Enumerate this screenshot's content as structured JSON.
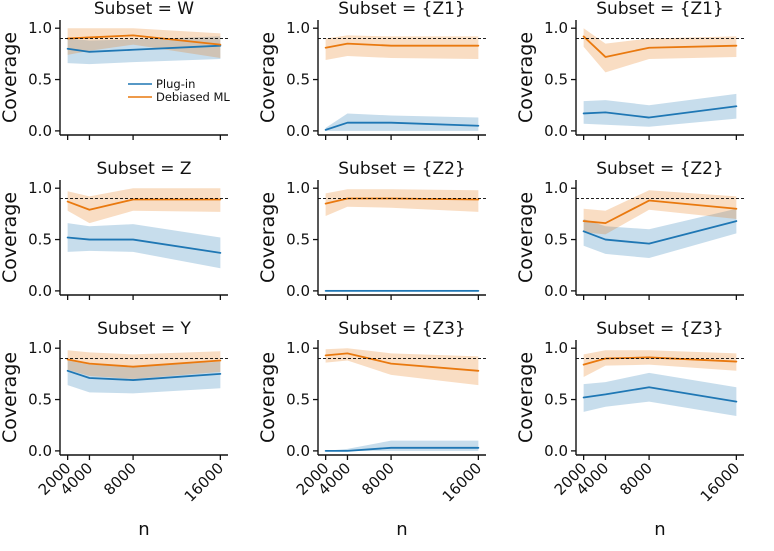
{
  "figure": {
    "ylabel": "Coverage",
    "xlabel": "n",
    "background": "#ffffff",
    "text_color": "#111111"
  },
  "legend": {
    "position": "inside-first-panel",
    "items": [
      {
        "label": "Plug-in",
        "series": "plugin"
      },
      {
        "label": "Debiased ML",
        "series": "debiased"
      }
    ]
  },
  "chart_data": {
    "type": "line",
    "grid": false,
    "x": [
      2000,
      4000,
      8000,
      16000
    ],
    "x_tick_labels": [
      "2000",
      "4000",
      "8000",
      "16000"
    ],
    "y_tick_values": [
      0.0,
      0.5,
      1.0
    ],
    "y_tick_labels": [
      "0.0",
      "0.5",
      "1.0"
    ],
    "xlim": [
      1300,
      16700
    ],
    "ylim": [
      -0.04,
      1.08
    ],
    "xlabel": "n",
    "ylabel": "Coverage",
    "reference_line": {
      "y": 0.9,
      "style": "dashed",
      "color": "#000000"
    },
    "colors": {
      "plugin": "#1f77b4",
      "debiased": "#e9790f"
    },
    "band_opacity": 0.25,
    "panels": [
      {
        "title": "Subset = W",
        "row": 0,
        "col": 0,
        "show_legend": true,
        "series": [
          {
            "key": "plugin",
            "name": "Plug-in",
            "values": [
              0.8,
              0.77,
              0.79,
              0.83
            ],
            "lo": [
              0.66,
              0.65,
              0.67,
              0.7
            ],
            "hi": [
              0.9,
              0.88,
              0.89,
              0.92
            ]
          },
          {
            "key": "debiased",
            "name": "Debiased ML",
            "values": [
              0.9,
              0.91,
              0.93,
              0.84
            ],
            "lo": [
              0.74,
              0.78,
              0.84,
              0.71
            ],
            "hi": [
              1.0,
              1.0,
              1.0,
              0.95
            ]
          }
        ]
      },
      {
        "title": "Subset = {Z1}",
        "row": 0,
        "col": 1,
        "show_legend": false,
        "series": [
          {
            "key": "plugin",
            "name": "Plug-in",
            "values": [
              0.01,
              0.08,
              0.08,
              0.05
            ],
            "lo": [
              0.0,
              0.0,
              0.0,
              0.0
            ],
            "hi": [
              0.03,
              0.17,
              0.15,
              0.13
            ]
          },
          {
            "key": "debiased",
            "name": "Debiased ML",
            "values": [
              0.81,
              0.85,
              0.83,
              0.83
            ],
            "lo": [
              0.69,
              0.73,
              0.71,
              0.7
            ],
            "hi": [
              0.9,
              0.93,
              0.92,
              0.92
            ]
          }
        ]
      },
      {
        "title": "Subset = {Z1}",
        "row": 0,
        "col": 2,
        "show_legend": false,
        "series": [
          {
            "key": "plugin",
            "name": "Plug-in",
            "values": [
              0.17,
              0.18,
              0.13,
              0.24
            ],
            "lo": [
              0.07,
              0.06,
              0.04,
              0.12
            ],
            "hi": [
              0.29,
              0.3,
              0.25,
              0.36
            ]
          },
          {
            "key": "debiased",
            "name": "Debiased ML",
            "values": [
              0.92,
              0.72,
              0.81,
              0.83
            ],
            "lo": [
              0.82,
              0.57,
              0.7,
              0.72
            ],
            "hi": [
              1.0,
              0.85,
              0.9,
              0.92
            ]
          }
        ]
      },
      {
        "title": "Subset = Z",
        "row": 1,
        "col": 0,
        "show_legend": false,
        "series": [
          {
            "key": "plugin",
            "name": "Plug-in",
            "values": [
              0.52,
              0.5,
              0.5,
              0.37
            ],
            "lo": [
              0.38,
              0.39,
              0.38,
              0.22
            ],
            "hi": [
              0.66,
              0.63,
              0.65,
              0.52
            ]
          },
          {
            "key": "debiased",
            "name": "Debiased ML",
            "values": [
              0.87,
              0.79,
              0.89,
              0.89
            ],
            "lo": [
              0.78,
              0.66,
              0.78,
              0.77
            ],
            "hi": [
              0.97,
              0.92,
              1.0,
              1.0
            ]
          }
        ]
      },
      {
        "title": "Subset = {Z2}",
        "row": 1,
        "col": 1,
        "show_legend": false,
        "series": [
          {
            "key": "plugin",
            "name": "Plug-in",
            "values": [
              0.0,
              0.0,
              0.0,
              0.0
            ],
            "lo": [
              0.0,
              0.0,
              0.0,
              0.0
            ],
            "hi": [
              0.01,
              0.01,
              0.01,
              0.01
            ]
          },
          {
            "key": "debiased",
            "name": "Debiased ML",
            "values": [
              0.85,
              0.9,
              0.9,
              0.89
            ],
            "lo": [
              0.73,
              0.82,
              0.81,
              0.77
            ],
            "hi": [
              0.95,
              0.99,
              0.99,
              0.98
            ]
          }
        ]
      },
      {
        "title": "Subset = {Z2}",
        "row": 1,
        "col": 2,
        "show_legend": false,
        "series": [
          {
            "key": "plugin",
            "name": "Plug-in",
            "values": [
              0.58,
              0.5,
              0.46,
              0.68
            ],
            "lo": [
              0.44,
              0.36,
              0.32,
              0.56
            ],
            "hi": [
              0.7,
              0.63,
              0.6,
              0.8
            ]
          },
          {
            "key": "debiased",
            "name": "Debiased ML",
            "values": [
              0.68,
              0.66,
              0.88,
              0.8
            ],
            "lo": [
              0.57,
              0.55,
              0.79,
              0.7
            ],
            "hi": [
              0.8,
              0.78,
              0.98,
              0.92
            ]
          }
        ]
      },
      {
        "title": "Subset = Y",
        "row": 2,
        "col": 0,
        "show_legend": false,
        "series": [
          {
            "key": "plugin",
            "name": "Plug-in",
            "values": [
              0.78,
              0.71,
              0.69,
              0.75
            ],
            "lo": [
              0.64,
              0.57,
              0.56,
              0.61
            ],
            "hi": [
              0.88,
              0.84,
              0.82,
              0.87
            ]
          },
          {
            "key": "debiased",
            "name": "Debiased ML",
            "values": [
              0.89,
              0.85,
              0.82,
              0.88
            ],
            "lo": [
              0.79,
              0.73,
              0.7,
              0.77
            ],
            "hi": [
              0.98,
              0.96,
              0.94,
              0.97
            ]
          }
        ]
      },
      {
        "title": "Subset = {Z3}",
        "row": 2,
        "col": 1,
        "show_legend": false,
        "series": [
          {
            "key": "plugin",
            "name": "Plug-in",
            "values": [
              0.0,
              0.0,
              0.03,
              0.03
            ],
            "lo": [
              0.0,
              0.0,
              0.0,
              0.0
            ],
            "hi": [
              0.0,
              0.02,
              0.1,
              0.1
            ]
          },
          {
            "key": "debiased",
            "name": "Debiased ML",
            "values": [
              0.93,
              0.95,
              0.85,
              0.78
            ],
            "lo": [
              0.86,
              0.88,
              0.74,
              0.64
            ],
            "hi": [
              0.99,
              1.0,
              0.95,
              0.92
            ]
          }
        ]
      },
      {
        "title": "Subset = {Z3}",
        "row": 2,
        "col": 2,
        "show_legend": false,
        "series": [
          {
            "key": "plugin",
            "name": "Plug-in",
            "values": [
              0.52,
              0.55,
              0.62,
              0.48
            ],
            "lo": [
              0.38,
              0.43,
              0.48,
              0.34
            ],
            "hi": [
              0.65,
              0.67,
              0.76,
              0.62
            ]
          },
          {
            "key": "debiased",
            "name": "Debiased ML",
            "values": [
              0.84,
              0.9,
              0.91,
              0.87
            ],
            "lo": [
              0.72,
              0.83,
              0.84,
              0.78
            ],
            "hi": [
              0.94,
              0.98,
              0.98,
              0.95
            ]
          }
        ]
      }
    ]
  }
}
